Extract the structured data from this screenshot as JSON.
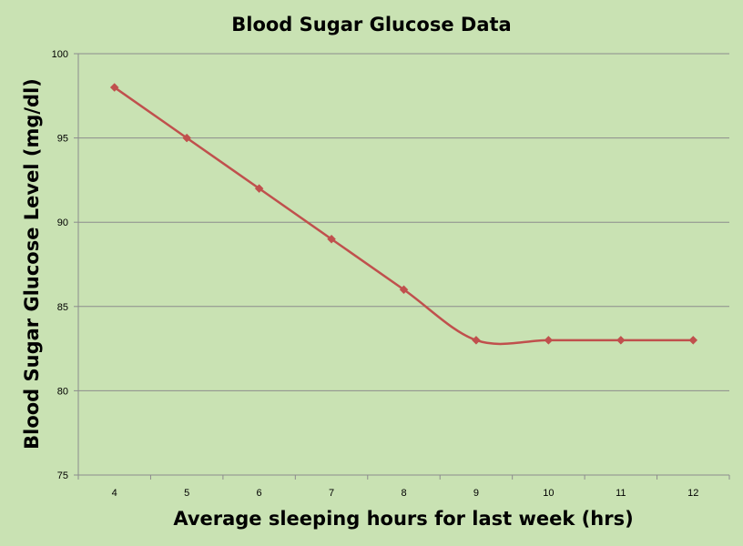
{
  "chart_data": {
    "type": "line",
    "title": "Blood Sugar Glucose Data",
    "xlabel": "Average sleeping hours for last week (hrs)",
    "ylabel": "Blood Sugar Glucose Level (mg/dl)",
    "categories": [
      "4",
      "5",
      "6",
      "7",
      "8",
      "9",
      "10",
      "11",
      "12"
    ],
    "series": [
      {
        "values": [
          98,
          95,
          92,
          89,
          86,
          83,
          83,
          83,
          83
        ]
      }
    ],
    "ylim": [
      75,
      100
    ],
    "yticks": [
      "75",
      "80",
      "85",
      "90",
      "95",
      "100"
    ],
    "grid": true,
    "legend": "none",
    "colors": {
      "background": "#c9e2b3",
      "line": "#c0504d",
      "marker": "#c0504d",
      "grid": "#8c8c8c",
      "axis": "#8c8c8c"
    }
  }
}
